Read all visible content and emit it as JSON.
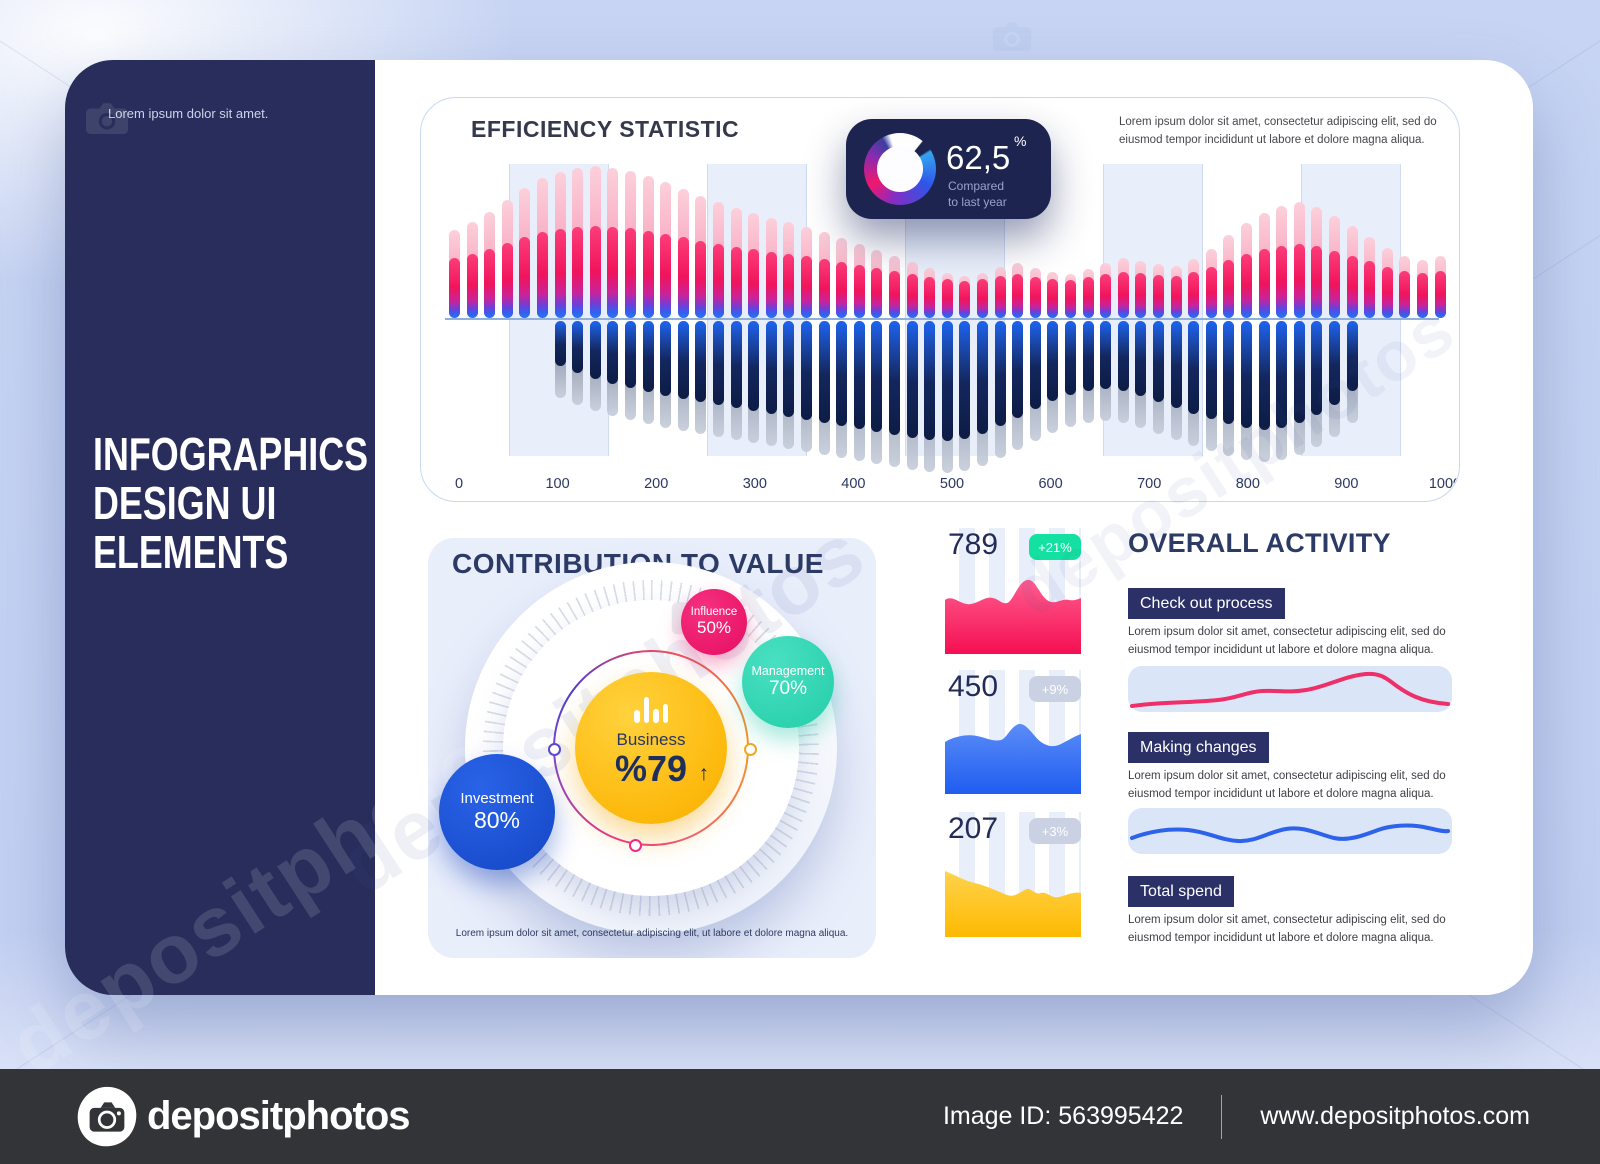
{
  "colors": {
    "accent_pink": "#f0145c",
    "accent_blue": "#2f6bf0",
    "accent_navy": "#2b3166",
    "accent_yellow": "#fdb90d",
    "accent_teal": "#24cda8",
    "accent_mint": "#14e1a1",
    "sidebar_navy": "#282d5b",
    "page_bg": "#c7d4f3"
  },
  "sidebar": {
    "note": "Lorem ipsum dolor sit amet.",
    "title": "INFOGRAPHICS\nDESIGN UI\nELEMENTS"
  },
  "efficiency": {
    "title": "EFFICIENCY STATISTIC",
    "description": "Lorem ipsum dolor sit amet, consectetur adipiscing elit, sed do eiusmod tempor incididunt ut labore et dolore magna aliqua.",
    "badge": {
      "value": "62,5",
      "unit": "%",
      "caption": "Compared\nto last year"
    }
  },
  "contribution": {
    "title": "CONTRIBUTION TO VALUE",
    "center": {
      "label": "Business",
      "value": "%79",
      "arrow": "↑"
    },
    "bubbles": [
      {
        "label": "Influence",
        "value": "50%"
      },
      {
        "label": "Management",
        "value": "70%"
      },
      {
        "label": "Investment",
        "value": "80%"
      }
    ],
    "caption": "Lorem ipsum dolor sit amet, consectetur adipiscing elit, ut labore et dolore magna aliqua."
  },
  "mini_charts": [
    {
      "value": "789",
      "delta": "+21%",
      "badge_bg": "#14e1a1",
      "color_top": "#ff5c8e",
      "color_bottom": "#f50f52"
    },
    {
      "value": "450",
      "delta": "+9%",
      "badge_bg": "#c9d1e2",
      "color_top": "#5b8cf7",
      "color_bottom": "#1f5df0"
    },
    {
      "value": "207",
      "delta": "+3%",
      "badge_bg": "#c9d1e2",
      "color_top": "#ffd34d",
      "color_bottom": "#fdb900"
    }
  ],
  "activity": {
    "title": "OVERALL ACTIVITY",
    "sections": [
      {
        "label": "Check out process",
        "text": "Lorem ipsum dolor sit amet, consectetur adipiscing elit, sed do eiusmod tempor incididunt ut labore et dolore magna aliqua.",
        "wave_color": "#ee2f68"
      },
      {
        "label": "Making changes",
        "text": "Lorem ipsum dolor sit amet, consectetur adipiscing elit, sed do eiusmod tempor incididunt ut labore et dolore magna aliqua.",
        "wave_color": "#2d62ea"
      },
      {
        "label": "Total spend",
        "text": "Lorem ipsum dolor sit amet, consectetur adipiscing elit, sed do eiusmod tempor incididunt ut labore et dolore magna aliqua.",
        "wave_color": null
      }
    ]
  },
  "footer": {
    "logo_text": "depositphotos",
    "image_id": "Image ID: 563995422",
    "url": "www.depositphotos.com"
  },
  "watermark_text": "depositphotos",
  "chart_data": [
    {
      "type": "bar",
      "title": "EFFICIENCY STATISTIC",
      "xlabel": "",
      "ylabel": "",
      "x_tick_labels": [
        "0",
        "100",
        "200",
        "300",
        "400",
        "500",
        "600",
        "700",
        "800",
        "900",
        "1000"
      ],
      "legend": false,
      "grid": "vertical highlight bands centered on 100,300,500,700,900",
      "series": [
        {
          "name": "above-axis (pink)",
          "values": [
            88,
            96,
            106,
            118,
            130,
            140,
            146,
            150,
            152,
            150,
            147,
            142,
            136,
            129,
            122,
            116,
            110,
            105,
            100,
            96,
            91,
            86,
            80,
            74,
            68,
            62,
            56,
            50,
            45,
            42,
            45,
            51,
            55,
            50,
            46,
            44,
            49,
            55,
            60,
            57,
            54,
            52,
            59,
            69,
            83,
            95,
            105,
            112,
            116,
            111,
            102,
            92,
            81,
            70,
            62,
            58,
            62
          ]
        },
        {
          "name": "below-axis primary (navy)",
          "values": [
            0,
            0,
            0,
            0,
            0,
            0,
            45,
            52,
            58,
            63,
            67,
            71,
            75,
            78,
            81,
            84,
            87,
            90,
            93,
            96,
            99,
            102,
            105,
            108,
            111,
            114,
            117,
            119,
            120,
            118,
            113,
            105,
            97,
            88,
            80,
            74,
            70,
            68,
            70,
            75,
            81,
            87,
            93,
            98,
            103,
            107,
            109,
            107,
            102,
            94,
            84,
            70,
            0,
            0,
            0,
            0,
            0
          ]
        },
        {
          "name": "below-axis secondary (gray)",
          "values": [
            0,
            0,
            0,
            0,
            0,
            0,
            77,
            84,
            90,
            95,
            99,
            103,
            107,
            110,
            113,
            116,
            119,
            122,
            125,
            128,
            131,
            134,
            137,
            140,
            143,
            146,
            149,
            151,
            152,
            150,
            145,
            137,
            129,
            120,
            112,
            106,
            102,
            100,
            102,
            107,
            113,
            119,
            125,
            130,
            135,
            139,
            141,
            139,
            134,
            126,
            116,
            102,
            0,
            0,
            0,
            0,
            0
          ]
        }
      ]
    },
    {
      "type": "pie",
      "title": "Compared to last year",
      "values": [
        62.5,
        37.5
      ],
      "labels": [
        "62,5 %",
        ""
      ]
    },
    {
      "type": "scatter",
      "title": "CONTRIBUTION TO VALUE",
      "points": [
        {
          "label": "Business",
          "value": 79
        },
        {
          "label": "Investment",
          "value": 80
        },
        {
          "label": "Management",
          "value": 70
        },
        {
          "label": "Influence",
          "value": 50
        }
      ]
    },
    {
      "type": "area",
      "title": "789 (+21%)",
      "values": [
        54,
        60,
        48,
        50,
        56,
        52,
        72,
        74,
        54,
        48,
        56,
        54,
        56
      ]
    },
    {
      "type": "area",
      "title": "450 (+9%)",
      "values": [
        52,
        58,
        60,
        54,
        56,
        70,
        68,
        52,
        48,
        44,
        50,
        54,
        60
      ]
    },
    {
      "type": "area",
      "title": "207 (+3%)",
      "values": [
        66,
        60,
        54,
        50,
        44,
        42,
        48,
        42,
        44,
        40,
        42,
        38,
        44
      ]
    },
    {
      "type": "line",
      "title": "Check out process",
      "values": [
        6,
        8,
        9,
        12,
        14,
        15,
        22,
        24,
        34,
        38,
        30,
        16,
        10
      ]
    },
    {
      "type": "line",
      "title": "Making changes",
      "values": [
        14,
        20,
        22,
        16,
        10,
        12,
        18,
        24,
        26,
        20,
        16,
        18,
        17
      ]
    }
  ]
}
